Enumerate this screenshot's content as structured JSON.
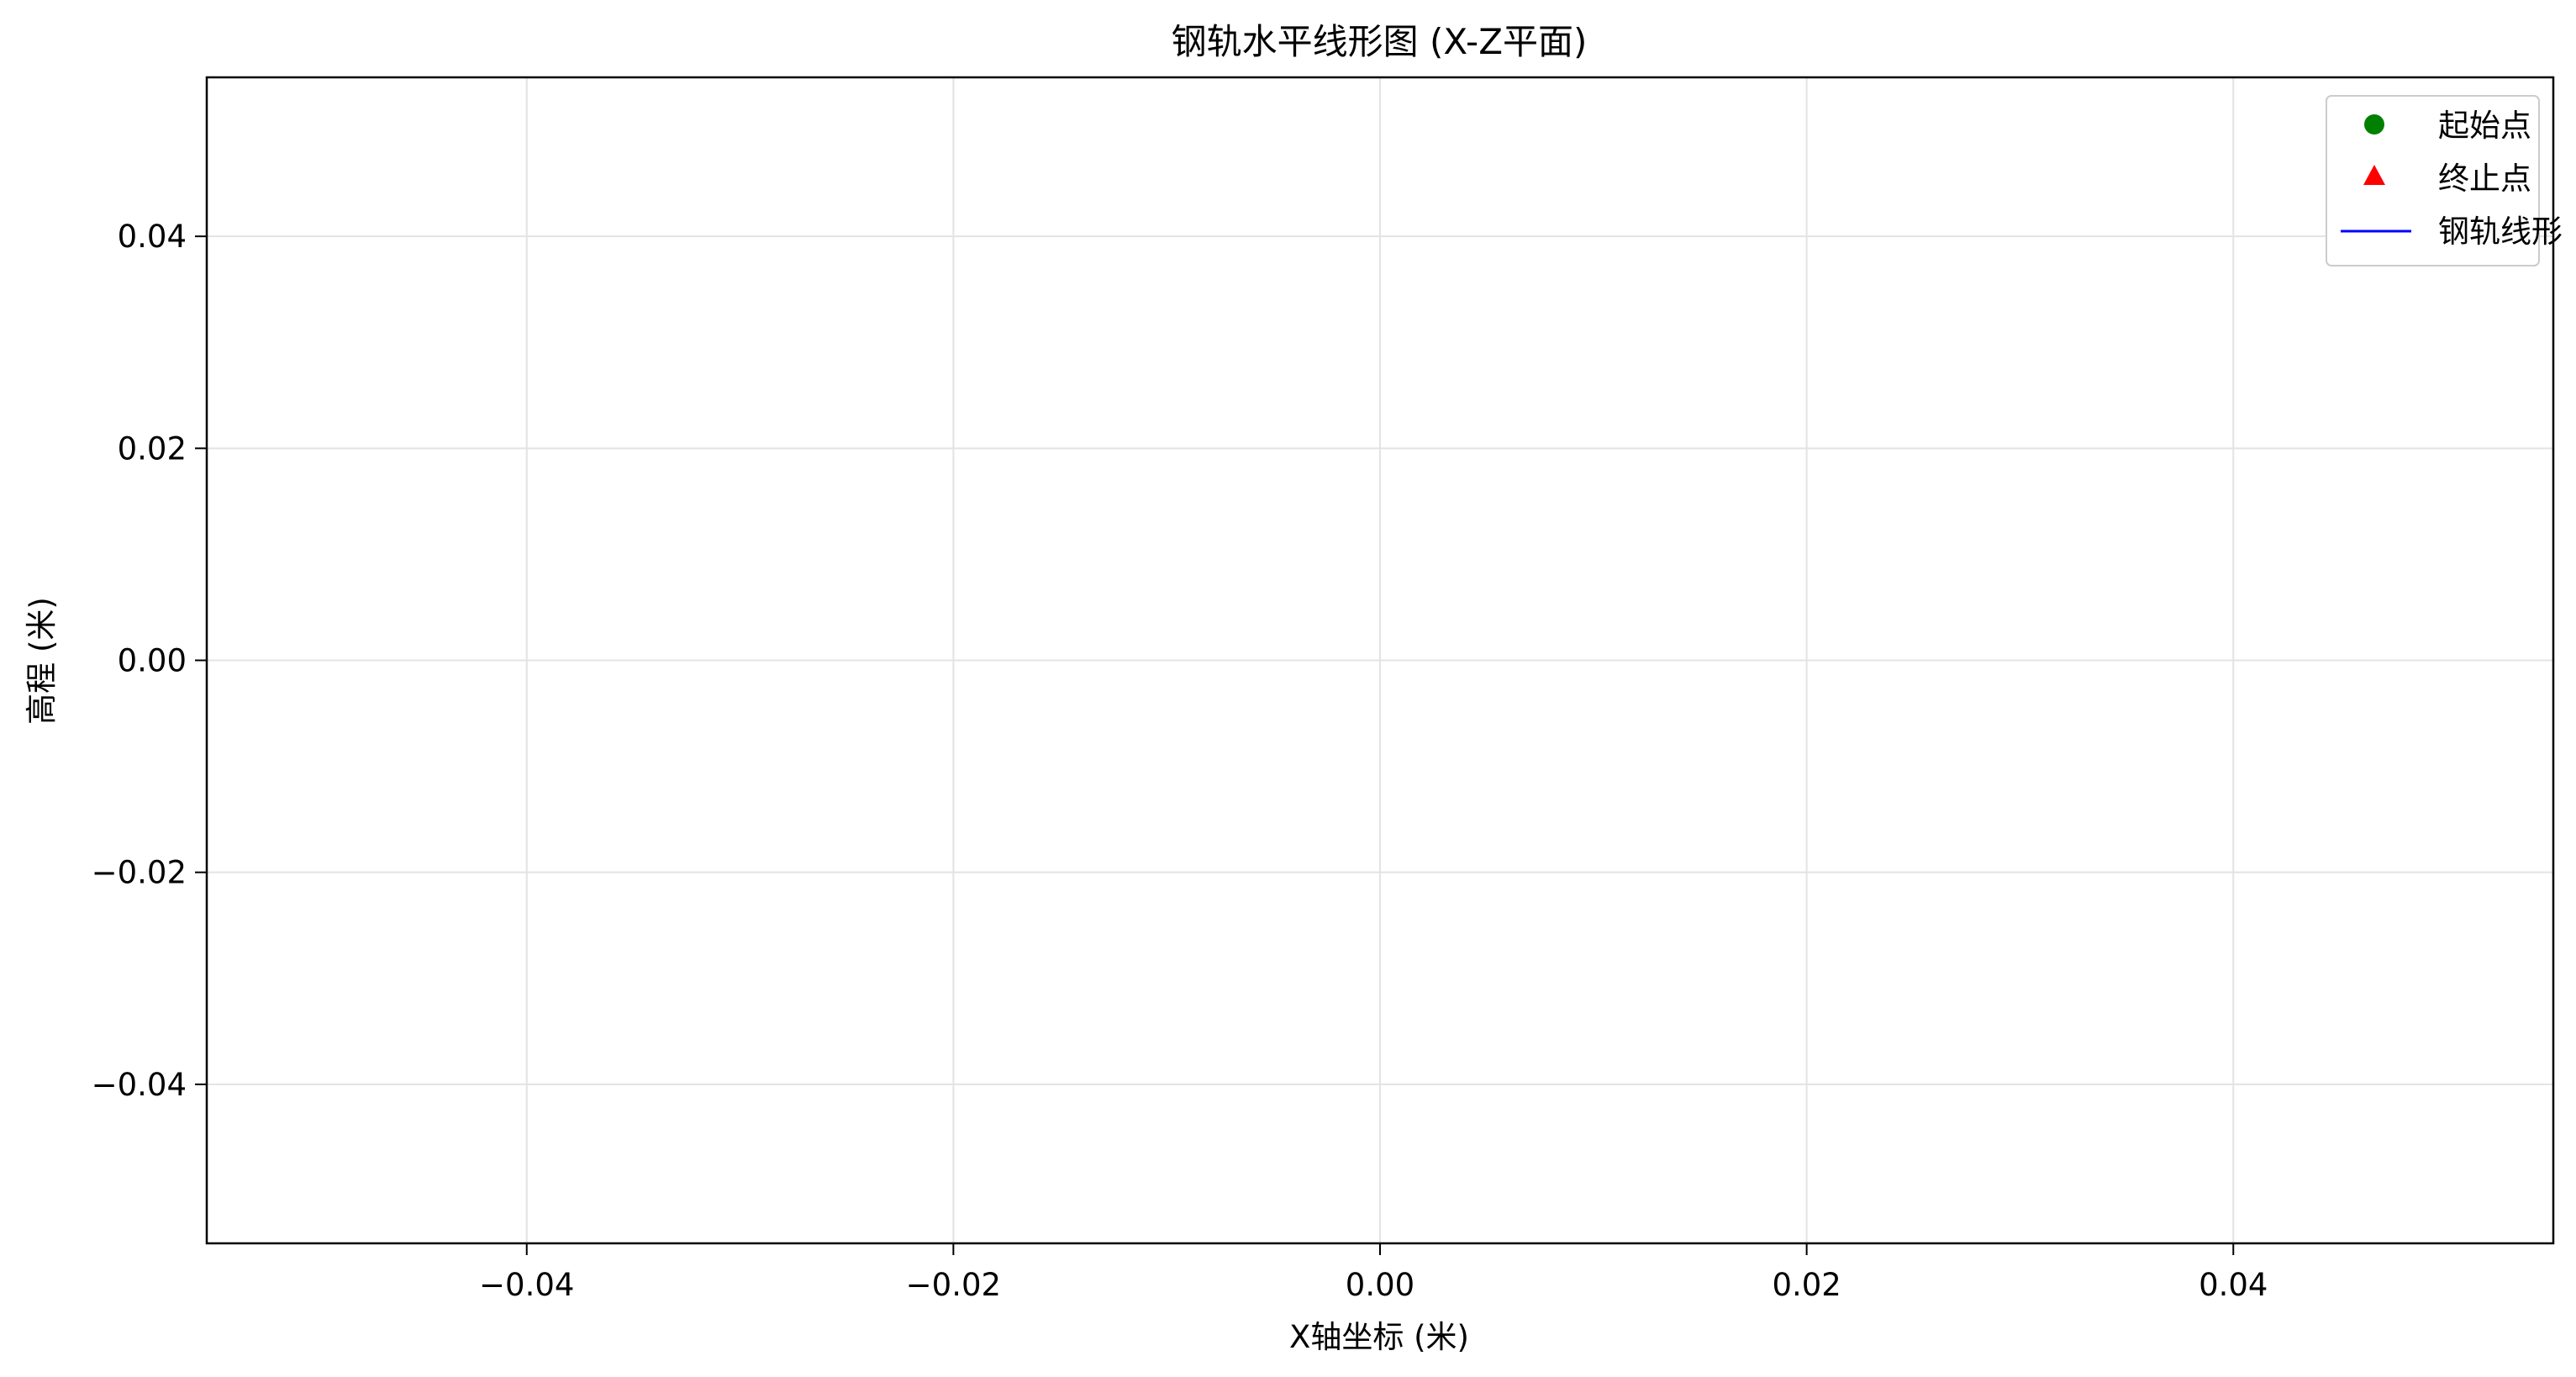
{
  "chart_data": {
    "type": "line",
    "title": "钢轨水平线形图 (X-Z平面)",
    "xlabel": "X轴坐标 (米)",
    "ylabel": "高程 (米)",
    "xlim": [
      -0.055,
      0.055
    ],
    "ylim": [
      -0.055,
      0.055
    ],
    "xticks": [
      -0.04,
      -0.02,
      0.0,
      0.02,
      0.04
    ],
    "yticks": [
      -0.04,
      -0.02,
      0.0,
      0.02,
      0.04
    ],
    "xtick_labels": [
      "−0.04",
      "−0.02",
      "0.00",
      "0.02",
      "0.04"
    ],
    "ytick_labels": [
      "−0.04",
      "−0.02",
      "0.00",
      "0.02",
      "0.04"
    ],
    "grid": true,
    "legend_position": "top-right",
    "series": [
      {
        "name": "起始点",
        "type": "scatter",
        "marker": "circle",
        "color": "#008000",
        "x": [],
        "y": []
      },
      {
        "name": "终止点",
        "type": "scatter",
        "marker": "triangle",
        "color": "#ff0000",
        "x": [],
        "y": []
      },
      {
        "name": "钢轨线形",
        "type": "line",
        "marker": "none",
        "color": "#0000ff",
        "x": [],
        "y": []
      }
    ]
  }
}
